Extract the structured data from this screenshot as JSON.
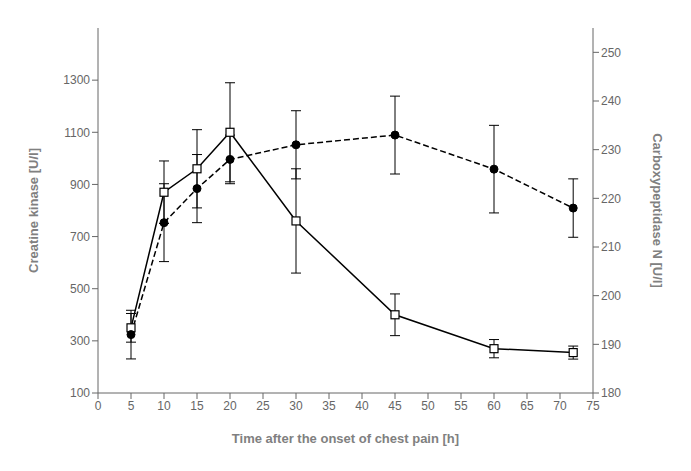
{
  "chart_data": {
    "type": "line",
    "x_label": "Time after the onset of chest pain [h]",
    "y_label": "Creatine kinase [U/l]",
    "y2_label": "Carboxypeptidase N [U/l]",
    "x": [
      5,
      10,
      15,
      20,
      30,
      45,
      60,
      72
    ],
    "series": [
      {
        "color": "#000000",
        "marker": "square",
        "line_style": "solid",
        "values": [
          350,
          870,
          960,
          1100,
          760,
          400,
          270,
          255
        ],
        "error": [
          55,
          120,
          150,
          190,
          200,
          80,
          35,
          25
        ]
      },
      {
        "color": "#000000",
        "marker": "circle",
        "line_style": "dashed",
        "axis": "y2",
        "values": [
          192,
          215,
          222,
          228,
          231,
          233,
          226,
          218
        ],
        "error": [
          5,
          8,
          7,
          5,
          7,
          8,
          9,
          6
        ]
      }
    ],
    "xlim": [
      0,
      75
    ],
    "xticks": [
      0,
      5,
      10,
      15,
      20,
      25,
      30,
      35,
      40,
      45,
      50,
      55,
      60,
      65,
      70,
      75
    ],
    "ylim": [
      100,
      1500
    ],
    "yticks": [
      100,
      300,
      500,
      700,
      900,
      1100,
      1300
    ],
    "y2lim": [
      180,
      255
    ],
    "y2ticks": [
      180,
      190,
      200,
      210,
      220,
      230,
      240,
      250
    ]
  }
}
